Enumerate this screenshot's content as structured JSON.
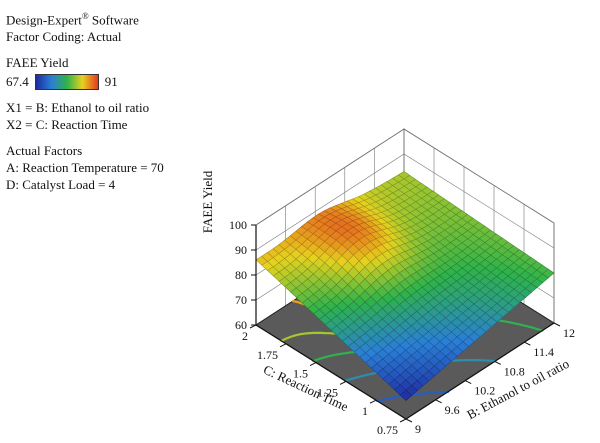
{
  "header": {
    "software": "Design-Expert",
    "software_mark": "®",
    "software_suffix": " Software",
    "factor_coding": "Factor Coding: Actual"
  },
  "legend": {
    "response": "FAEE Yield",
    "min": "67.4",
    "max": "91",
    "colors": [
      "#1f2a9e",
      "#2a7fd6",
      "#2fb34a",
      "#e6d21f",
      "#e8371d"
    ]
  },
  "axes_map": {
    "x1": "X1 = B: Ethanol to oil ratio",
    "x2": "X2 = C: Reaction Time"
  },
  "actual_factors": {
    "heading": "Actual Factors",
    "a": "A: Reaction Temperature = 70",
    "d": "D: Catalyst Load = 4"
  },
  "chart_data": {
    "type": "surface3d",
    "zlabel": "FAEE Yield",
    "xlabel": "B: Ethanol to oil ratio",
    "ylabel": "C: Reaction Time",
    "x_ticks": [
      "9",
      "9.6",
      "10.2",
      "10.8",
      "11.4",
      "12"
    ],
    "x_tick_values": [
      9,
      9.6,
      10.2,
      10.8,
      11.4,
      12
    ],
    "y_ticks": [
      "0.75",
      "1",
      "1.25",
      "1.5",
      "1.75",
      "2"
    ],
    "y_tick_values": [
      0.75,
      1,
      1.25,
      1.5,
      1.75,
      2
    ],
    "z_ticks": [
      "60",
      "70",
      "80",
      "90",
      "100"
    ],
    "z_tick_values": [
      60,
      70,
      80,
      90,
      100
    ],
    "xlim": [
      9,
      12
    ],
    "ylim": [
      0.75,
      2
    ],
    "zlim": [
      60,
      100
    ],
    "color_range": [
      67.4,
      91
    ],
    "grid": true,
    "surface": {
      "corner_values": {
        "ratio9_time2": 86,
        "ratio9_time0.75": 67.4,
        "ratio12_time0.75": 80,
        "ratio12_time2": 83
      },
      "peak": {
        "x": 10.3,
        "y": 1.7,
        "z": 91
      }
    }
  }
}
